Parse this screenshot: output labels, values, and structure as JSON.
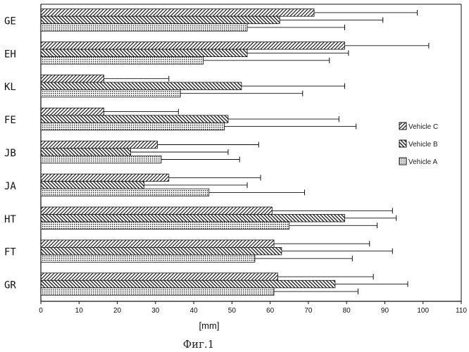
{
  "chart_data": {
    "type": "bar",
    "orientation": "horizontal",
    "categories": [
      "GE",
      "EH",
      "KL",
      "FE",
      "JB",
      "JA",
      "HT",
      "FT",
      "GR"
    ],
    "series": [
      {
        "name": "Vehicle C",
        "pattern": "diagonal-right",
        "values": [
          71.5,
          79.5,
          16.5,
          16.5,
          30.5,
          33.5,
          60.5,
          61.0,
          62.0
        ],
        "errors": [
          27.0,
          22.0,
          17.0,
          19.5,
          26.5,
          24.0,
          31.5,
          25.0,
          25.0
        ]
      },
      {
        "name": "Vehicle B",
        "pattern": "diagonal-left",
        "values": [
          62.5,
          54.0,
          52.5,
          49.0,
          23.5,
          27.0,
          79.5,
          63.0,
          77.0
        ],
        "errors": [
          27.0,
          26.5,
          27.0,
          29.0,
          25.5,
          27.0,
          13.5,
          29.0,
          19.0
        ]
      },
      {
        "name": "Vehicle A",
        "pattern": "dots",
        "values": [
          54.0,
          42.5,
          36.5,
          48.0,
          31.5,
          44.0,
          65.0,
          56.0,
          61.0
        ],
        "errors": [
          25.5,
          33.0,
          32.0,
          34.5,
          20.5,
          25.0,
          23.0,
          25.5,
          22.0
        ]
      }
    ],
    "xlabel": "[mm]",
    "ylabel": "",
    "xlim": [
      0,
      110
    ],
    "xticks": [
      "0",
      "10",
      "20",
      "30",
      "40",
      "50",
      "60",
      "70",
      "80",
      "90",
      "100",
      "110"
    ],
    "grid": false,
    "legend_position": "right",
    "caption": "Фиг.1"
  }
}
